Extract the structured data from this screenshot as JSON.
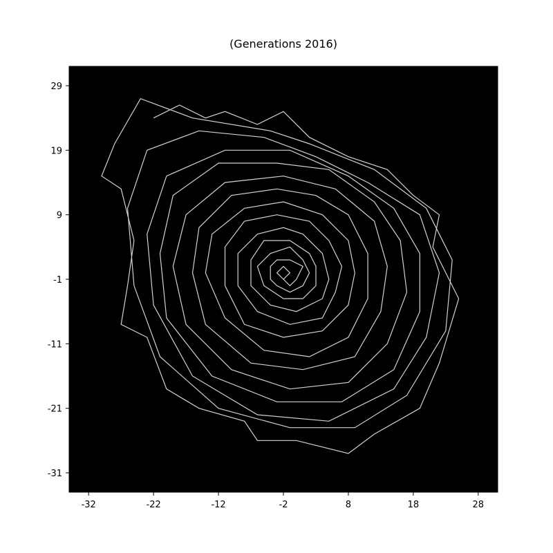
{
  "chart_data": {
    "type": "line",
    "title": "(Generations 2016)",
    "xlabel": "",
    "ylabel": "",
    "xlim": [
      -35,
      31
    ],
    "ylim": [
      -34,
      32
    ],
    "x_ticks": [
      -32,
      -22,
      -12,
      -2,
      8,
      18,
      28
    ],
    "y_ticks": [
      29,
      19,
      9,
      -1,
      -11,
      -21,
      -31
    ],
    "background": "#000000",
    "line_color": "#d3d3d3",
    "grid": false,
    "series": [
      {
        "points": [
          [
            -2,
            -1
          ],
          [
            -1,
            0
          ],
          [
            -2,
            1
          ],
          [
            -3,
            0
          ],
          [
            -2,
            -1
          ],
          [
            -1,
            -2
          ],
          [
            0,
            -1
          ],
          [
            1,
            1
          ],
          [
            -1,
            2
          ],
          [
            -3,
            2
          ],
          [
            -4,
            1
          ],
          [
            -4,
            -1
          ],
          [
            -3,
            -2
          ],
          [
            -1,
            -3
          ],
          [
            1,
            -2
          ],
          [
            2,
            0
          ],
          [
            1,
            2
          ],
          [
            -1,
            4
          ],
          [
            -4,
            3
          ],
          [
            -6,
            1
          ],
          [
            -5,
            -2
          ],
          [
            -2,
            -4
          ],
          [
            1,
            -4
          ],
          [
            3,
            -2
          ],
          [
            3,
            1
          ],
          [
            2,
            3
          ],
          [
            -1,
            5
          ],
          [
            -5,
            5
          ],
          [
            -7,
            2
          ],
          [
            -7,
            -2
          ],
          [
            -4,
            -5
          ],
          [
            0,
            -6
          ],
          [
            4,
            -4
          ],
          [
            5,
            -1
          ],
          [
            4,
            3
          ],
          [
            1,
            6
          ],
          [
            -2,
            7
          ],
          [
            -6,
            6
          ],
          [
            -9,
            3
          ],
          [
            -9,
            -2
          ],
          [
            -6,
            -6
          ],
          [
            -1,
            -8
          ],
          [
            4,
            -7
          ],
          [
            6,
            -3
          ],
          [
            7,
            1
          ],
          [
            5,
            5
          ],
          [
            2,
            8
          ],
          [
            -3,
            9
          ],
          [
            -8,
            8
          ],
          [
            -11,
            4
          ],
          [
            -11,
            -2
          ],
          [
            -8,
            -8
          ],
          [
            -2,
            -10
          ],
          [
            4,
            -9
          ],
          [
            8,
            -5
          ],
          [
            9,
            0
          ],
          [
            8,
            5
          ],
          [
            4,
            9
          ],
          [
            -2,
            11
          ],
          [
            -8,
            10
          ],
          [
            -13,
            6
          ],
          [
            -14,
            0
          ],
          [
            -11,
            -7
          ],
          [
            -5,
            -12
          ],
          [
            2,
            -13
          ],
          [
            8,
            -10
          ],
          [
            11,
            -4
          ],
          [
            11,
            3
          ],
          [
            8,
            9
          ],
          [
            3,
            12
          ],
          [
            -3,
            13
          ],
          [
            -10,
            12
          ],
          [
            -15,
            7
          ],
          [
            -16,
            0
          ],
          [
            -14,
            -8
          ],
          [
            -7,
            -14
          ],
          [
            1,
            -15
          ],
          [
            9,
            -13
          ],
          [
            13,
            -6
          ],
          [
            14,
            1
          ],
          [
            12,
            8
          ],
          [
            6,
            13
          ],
          [
            -2,
            15
          ],
          [
            -11,
            14
          ],
          [
            -17,
            9
          ],
          [
            -19,
            1
          ],
          [
            -17,
            -8
          ],
          [
            -10,
            -15
          ],
          [
            -1,
            -18
          ],
          [
            8,
            -17
          ],
          [
            14,
            -11
          ],
          [
            17,
            -3
          ],
          [
            16,
            5
          ],
          [
            12,
            11
          ],
          [
            5,
            16
          ],
          [
            -3,
            17
          ],
          [
            -12,
            17
          ],
          [
            -19,
            12
          ],
          [
            -21,
            3
          ],
          [
            -20,
            -7
          ],
          [
            -13,
            -16
          ],
          [
            -3,
            -20
          ],
          [
            7,
            -20
          ],
          [
            15,
            -15
          ],
          [
            19,
            -6
          ],
          [
            19,
            3
          ],
          [
            15,
            10
          ],
          [
            8,
            15
          ],
          [
            -1,
            19
          ],
          [
            -11,
            19
          ],
          [
            -20,
            15
          ],
          [
            -23,
            6
          ],
          [
            -22,
            -5
          ],
          [
            -16,
            -16
          ],
          [
            -6,
            -22
          ],
          [
            5,
            -23
          ],
          [
            15,
            -18
          ],
          [
            20,
            -10
          ],
          [
            22,
            0
          ],
          [
            19,
            9
          ],
          [
            11,
            14
          ],
          [
            3,
            18
          ],
          [
            -5,
            21
          ],
          [
            -15,
            22
          ],
          [
            -23,
            19
          ],
          [
            -26,
            10
          ],
          [
            -25,
            -2
          ],
          [
            -21,
            -13
          ],
          [
            -12,
            -21
          ],
          [
            -1,
            -24
          ],
          [
            9,
            -24
          ],
          [
            17,
            -19
          ],
          [
            23,
            -9
          ],
          [
            24,
            2
          ],
          [
            20,
            10
          ],
          [
            12,
            16
          ],
          [
            2,
            20
          ],
          [
            -4,
            22
          ],
          [
            -16,
            24
          ],
          [
            -24,
            27
          ],
          [
            -28,
            20
          ],
          [
            -30,
            15
          ],
          [
            -27,
            13
          ],
          [
            -25,
            5
          ],
          [
            -26,
            -2
          ],
          [
            -27,
            -8
          ],
          [
            -23,
            -10
          ],
          [
            -20,
            -18
          ],
          [
            -15,
            -21
          ],
          [
            -8,
            -23
          ],
          [
            -6,
            -26
          ],
          [
            0,
            -26
          ],
          [
            8,
            -28
          ],
          [
            12,
            -25
          ],
          [
            19,
            -21
          ],
          [
            22,
            -14
          ],
          [
            25,
            -4
          ],
          [
            21,
            4
          ],
          [
            22,
            9
          ],
          [
            18,
            12
          ],
          [
            14,
            16
          ],
          [
            8,
            18
          ],
          [
            2,
            21
          ],
          [
            -2,
            25
          ],
          [
            -6,
            23
          ],
          [
            -11,
            25
          ],
          [
            -14,
            24
          ],
          [
            -18,
            26
          ],
          [
            -22,
            24
          ]
        ]
      }
    ]
  }
}
